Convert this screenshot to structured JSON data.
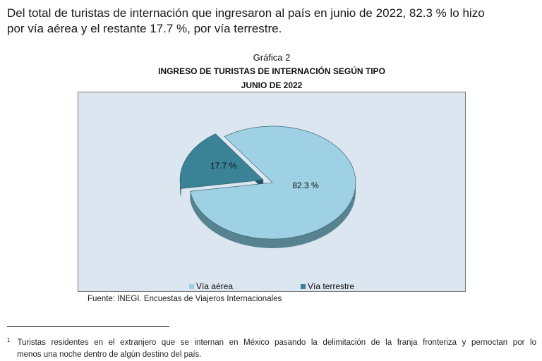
{
  "intro": {
    "line1": "Del total de turistas de internación que ingresaron al país en junio de 2022, 82.3 % lo hizo",
    "line2": "por vía aérea y el restante 17.7 %, por vía terrestre."
  },
  "chart_data": {
    "type": "pie",
    "caption": "Gráfica 2",
    "title": "INGRESO DE TURISTAS DE INTERNACIÓN SEGÚN TIPO",
    "subtitle": "JUNIO DE 2022",
    "slices": [
      {
        "label": "Vía aérea",
        "value": 82.3,
        "data_label": "82.3 %",
        "color": "#9dd1e3",
        "side_color": "#56838f",
        "exploded": false
      },
      {
        "label": "Vía terrestre",
        "value": 17.7,
        "data_label": "17.7 %",
        "color": "#3a8295",
        "side_color": "#1f5462",
        "exploded": true
      }
    ],
    "legend_position": "bottom",
    "style": "3d",
    "background_color": "#dce6f1"
  },
  "source": "Fuente: INEGI. Encuestas de Viajeros Internacionales",
  "footnote": {
    "mark": "1",
    "line1": "Turistas residentes en el extranjero que se internan en México pasando la delimitación de la franja fronteriza y pernoctan por lo",
    "line2": "menos una noche dentro de algún destino del país."
  }
}
